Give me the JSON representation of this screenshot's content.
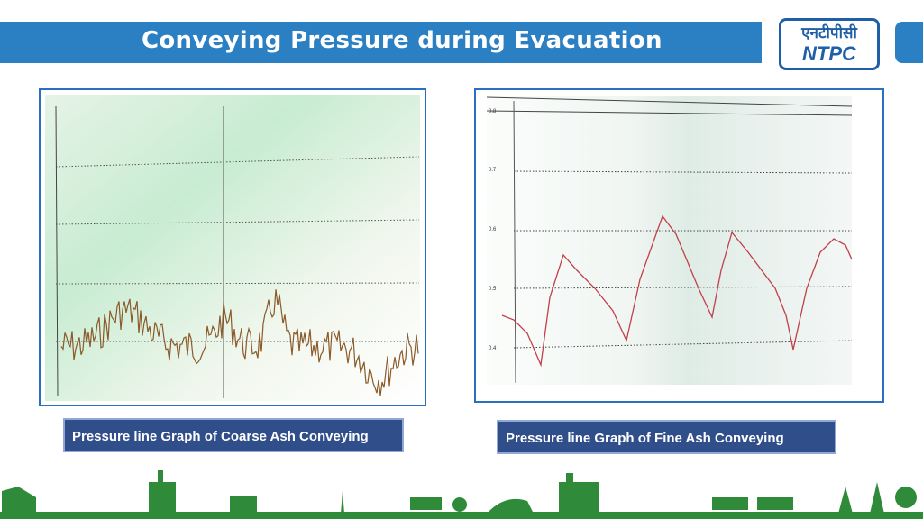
{
  "header": {
    "title": "Conveying Pressure during Evacuation",
    "logo": {
      "hindi": "एनटीपीसी",
      "english": "NTPC"
    }
  },
  "figures": [
    {
      "caption": "Pressure line Graph of Coarse Ash Conveying"
    },
    {
      "caption": "Pressure line Graph of Fine Ash Conveying",
      "axis_labels": [
        "0.8",
        "0.7",
        "0.6",
        "0.5",
        "0.4"
      ]
    }
  ]
}
